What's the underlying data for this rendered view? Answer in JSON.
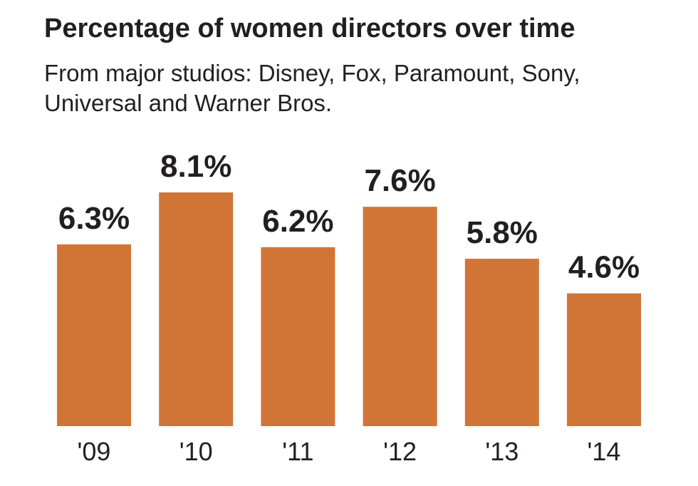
{
  "header": {
    "title": "Percentage of women directors over time",
    "subtitle": "From major studios: Disney, Fox, Paramount, Sony, Universal and Warner Bros."
  },
  "colors": {
    "bar": "#d07536",
    "text": "#231f20"
  },
  "chart_data": {
    "type": "bar",
    "title": "Percentage of women directors over time",
    "subtitle": "From major studios: Disney, Fox, Paramount, Sony, Universal and Warner Bros.",
    "categories": [
      "'09",
      "'10",
      "'11",
      "'12",
      "'13",
      "'14"
    ],
    "values": [
      6.3,
      8.1,
      6.2,
      7.6,
      5.8,
      4.6
    ],
    "value_labels": [
      "6.3%",
      "8.1%",
      "6.2%",
      "7.6%",
      "5.8%",
      "4.6%"
    ],
    "xlabel": "",
    "ylabel": "",
    "ylim": [
      0,
      8.1
    ],
    "grid": false,
    "legend": "none"
  }
}
